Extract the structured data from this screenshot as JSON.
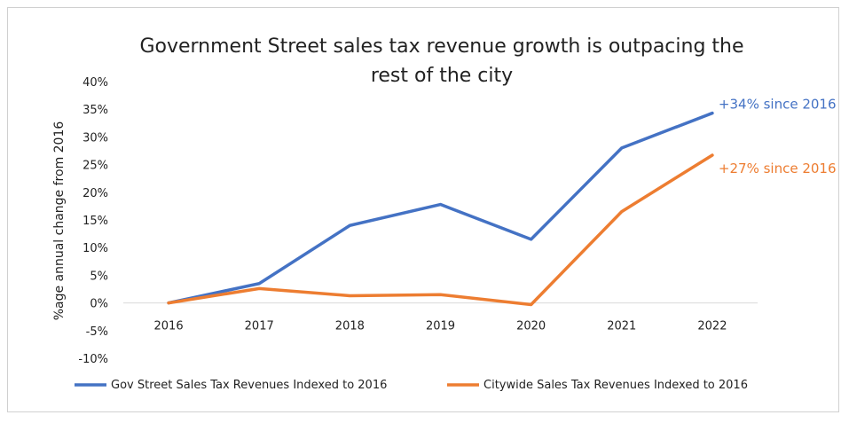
{
  "chart_data": {
    "type": "line",
    "title_lines": [
      "Government Street sales tax revenue growth is outpacing the",
      "rest of the city"
    ],
    "xlabel": "",
    "ylabel": "%age annual change from 2016",
    "x": [
      "2016",
      "2017",
      "2018",
      "2019",
      "2020",
      "2021",
      "2022"
    ],
    "ylim": [
      -10,
      40
    ],
    "yticks": [
      -10,
      -5,
      0,
      5,
      10,
      15,
      20,
      25,
      30,
      35,
      40
    ],
    "ytick_labels": [
      "-10%",
      "-5%",
      "0%",
      "5%",
      "10%",
      "15%",
      "20%",
      "25%",
      "30%",
      "35%",
      "40%"
    ],
    "grid": false,
    "legend": "bottom",
    "series": [
      {
        "name": "Gov Street Sales Tax Revenues Indexed to 2016",
        "color": "#4472C4",
        "values": [
          0,
          3.5,
          14,
          17.8,
          11.5,
          28,
          34.3
        ],
        "annotation": "+34% since 2016"
      },
      {
        "name": "Citywide Sales Tax Revenues Indexed to 2016",
        "color": "#ED7D31",
        "values": [
          0,
          2.6,
          1.3,
          1.5,
          -0.3,
          16.5,
          26.7
        ],
        "annotation": "+27% since 2016"
      }
    ]
  }
}
